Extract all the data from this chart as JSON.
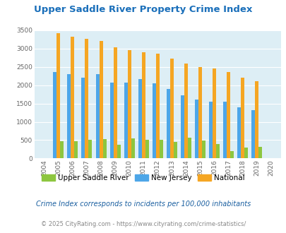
{
  "title": "Upper Saddle River Property Crime Index",
  "years": [
    2004,
    2005,
    2006,
    2007,
    2008,
    2009,
    2010,
    2011,
    2012,
    2013,
    2014,
    2015,
    2016,
    2017,
    2018,
    2019,
    2020
  ],
  "upper_saddle_river": [
    0,
    475,
    475,
    510,
    530,
    375,
    540,
    510,
    510,
    450,
    560,
    490,
    400,
    210,
    295,
    320,
    0
  ],
  "new_jersey": [
    0,
    2360,
    2300,
    2200,
    2310,
    2075,
    2075,
    2165,
    2055,
    1905,
    1725,
    1610,
    1555,
    1555,
    1405,
    1310,
    0
  ],
  "national": [
    0,
    3420,
    3330,
    3260,
    3210,
    3040,
    2950,
    2905,
    2855,
    2720,
    2590,
    2490,
    2460,
    2360,
    2200,
    2110,
    0
  ],
  "bar_width": 0.25,
  "ylim": [
    0,
    3500
  ],
  "yticks": [
    0,
    500,
    1000,
    1500,
    2000,
    2500,
    3000,
    3500
  ],
  "color_usr": "#8dc63f",
  "color_nj": "#4da6e8",
  "color_nat": "#f5a623",
  "bg_color": "#ddeef5",
  "title_color": "#1a6fba",
  "legend_label_usr": "Upper Saddle River",
  "legend_label_nj": "New Jersey",
  "legend_label_nat": "National",
  "footnote1": "Crime Index corresponds to incidents per 100,000 inhabitants",
  "footnote2": "© 2025 CityRating.com - https://www.cityrating.com/crime-statistics/",
  "footnote_color1": "#1a5fa0",
  "footnote_color2": "#888888"
}
